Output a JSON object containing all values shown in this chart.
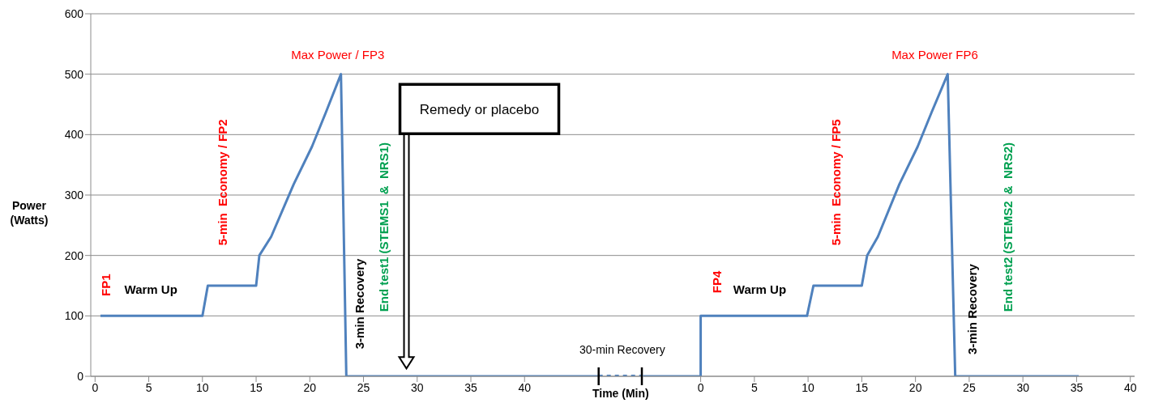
{
  "chart_data": [
    {
      "type": "line",
      "xlabel": "Time (Min)",
      "ylabel": "Power (Watts)",
      "xlim": [
        -0.4,
        51
      ],
      "ylim": [
        0,
        600
      ],
      "xticks": [
        0,
        5,
        10,
        15,
        20,
        25,
        30,
        35,
        40
      ],
      "yticks": [
        0,
        100,
        200,
        300,
        400,
        500,
        600
      ],
      "grid": "y",
      "marker": "none",
      "series": [
        {
          "color": "#4f81bd",
          "line_style": "solid",
          "x": [
            0.5,
            10,
            10.5,
            15,
            15.3,
            16.4,
            18.5,
            20.2,
            21.5,
            22.9,
            23.4,
            46.9
          ],
          "values": [
            100,
            100,
            150,
            150,
            200,
            231,
            318,
            380,
            437,
            500,
            0,
            0
          ]
        },
        {
          "color": "#4f81bd",
          "line_style": "dotted",
          "x": [
            46.9,
            51
          ],
          "values": [
            0,
            0
          ]
        }
      ],
      "annotations": [
        "FP1",
        "Warm Up",
        "5-min  Economy / FP2",
        "Max Power / FP3",
        "3-min Recovery",
        "End test1 (STEMS1  &  NRS1)",
        "Remedy or placebo",
        "30-min Recovery"
      ]
    },
    {
      "type": "line",
      "xlim": [
        -5.4,
        40.4
      ],
      "ylim": [
        0,
        600
      ],
      "xticks": [
        0,
        5,
        10,
        15,
        20,
        25,
        30,
        35,
        40
      ],
      "yticks": [
        0,
        100,
        200,
        300,
        400,
        500,
        600
      ],
      "grid": "y",
      "marker": "none",
      "tick_labels": "x",
      "series": [
        {
          "color": "#4f81bd",
          "line_style": "solid",
          "x": [
            -5.4,
            0,
            0,
            9.9,
            10.5,
            15,
            15.5,
            16.5,
            18.5,
            20.2,
            21.5,
            23,
            23.7,
            35.2
          ],
          "values": [
            0,
            0,
            100,
            100,
            150,
            150,
            200,
            231,
            318,
            380,
            437,
            500,
            0,
            0
          ]
        }
      ],
      "annotations": [
        "FP4",
        "Warm Up",
        "5-min  Economy / FP5",
        "Max Power FP6",
        "3-min Recovery",
        "End test2 (STEMS2  &  NRS2)"
      ]
    }
  ]
}
